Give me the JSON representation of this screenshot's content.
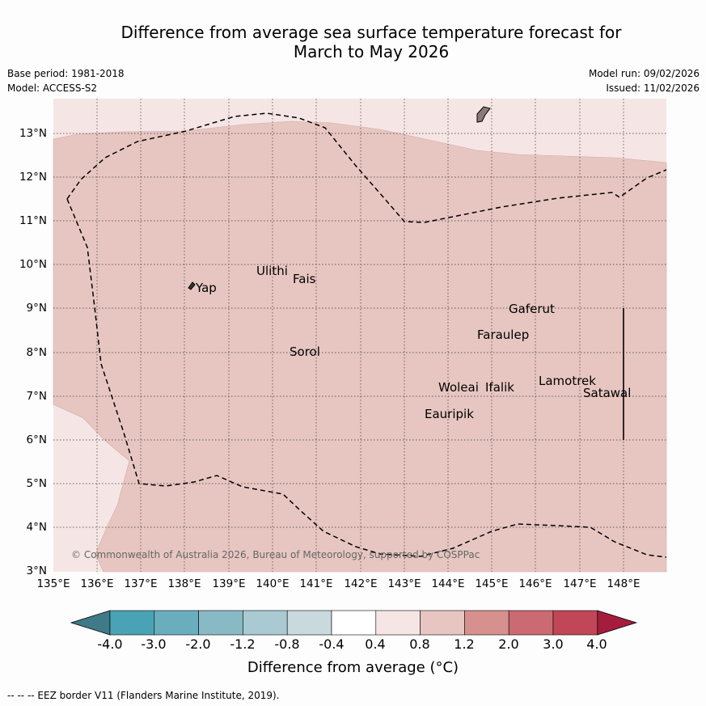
{
  "title": {
    "line1": "Difference from average sea surface temperature forecast for",
    "line2": "March to May 2026"
  },
  "meta": {
    "base_period": "Base period: 1981-2018",
    "model": "Model: ACCESS-S2",
    "model_run": "Model run: 09/02/2026",
    "issued": "Issued: 11/02/2026"
  },
  "axes": {
    "x_ticks": [
      "135°E",
      "136°E",
      "137°E",
      "138°E",
      "139°E",
      "140°E",
      "141°E",
      "142°E",
      "143°E",
      "144°E",
      "145°E",
      "146°E",
      "147°E",
      "148°E"
    ],
    "y_ticks": [
      "13°N",
      "12°N",
      "11°N",
      "10°N",
      "9°N",
      "8°N",
      "7°N",
      "6°N",
      "5°N",
      "4°N",
      "3°N"
    ]
  },
  "places": [
    "Yap",
    "Ulithi",
    "Fais",
    "Sorol",
    "Gaferut",
    "Faraulep",
    "Woleai",
    "Ifalik",
    "Lamotrek",
    "Satawal",
    "Eauripik"
  ],
  "copyright": "© Commonwealth of Australia 2026, Bureau of Meteorology, supported by COSPPac",
  "colorbar": {
    "title": "Difference from average (°C)",
    "labels": [
      "-4.0",
      "-3.0",
      "-2.0",
      "-1.2",
      "-0.8",
      "-0.4",
      "0.4",
      "0.8",
      "1.2",
      "2.0",
      "3.0",
      "4.0"
    ],
    "colors": [
      "#3e7a88",
      "#4aa3b5",
      "#6aaebe",
      "#8ab9c6",
      "#a9cad2",
      "#c9dadf",
      "#ffffff",
      "#f5e6e5",
      "#e7c6c1",
      "#d6918f",
      "#cc6a73",
      "#c04658",
      "#a51d3c"
    ]
  },
  "footnote": "--  --  -- EEZ border V11 (Flanders Marine Institute, 2019)."
}
